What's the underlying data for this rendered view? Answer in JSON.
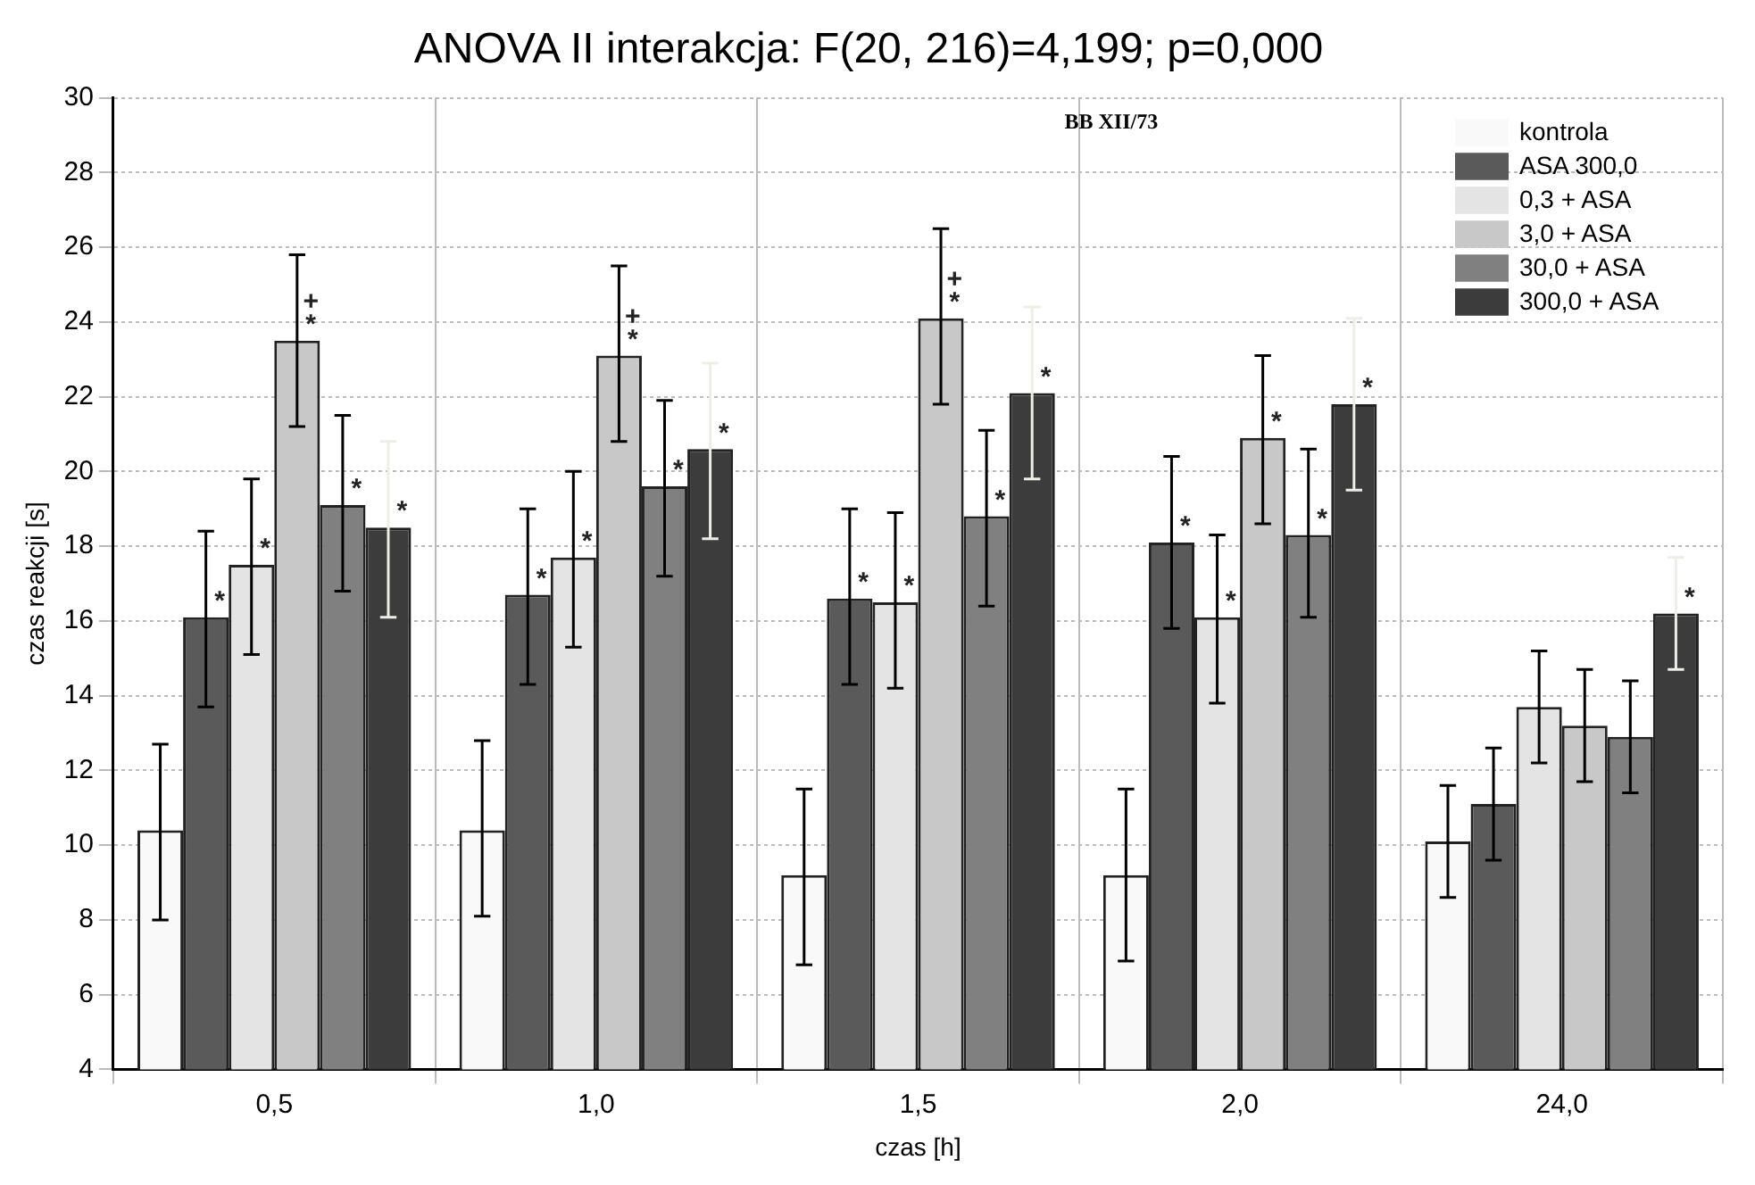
{
  "chart_data": {
    "type": "bar",
    "title": "ANOVA II interakcja: F(20, 216)=4,199; p=0,000",
    "xlabel": "czas [h]",
    "ylabel": "czas reakcji [s]",
    "annotations": [
      "BB XII/73"
    ],
    "categories": [
      "0,5",
      "1,0",
      "1,5",
      "2,0",
      "24,0"
    ],
    "ylim": [
      4,
      30
    ],
    "yticks": [
      4,
      6,
      8,
      10,
      12,
      14,
      16,
      18,
      20,
      22,
      24,
      26,
      28,
      30
    ],
    "grid": true,
    "legend": "top right",
    "series": [
      {
        "name": "kontrola",
        "color": "#f9f9f9",
        "values": [
          10.4,
          10.4,
          9.2,
          9.2,
          10.1
        ],
        "errors": [
          [
            8.0,
            12.7
          ],
          [
            8.1,
            12.8
          ],
          [
            6.8,
            11.5
          ],
          [
            6.9,
            11.5
          ],
          [
            8.6,
            11.6
          ]
        ]
      },
      {
        "name": "ASA 300,0",
        "color": "#5a5a5a",
        "values": [
          16.1,
          16.7,
          16.6,
          18.1,
          11.1
        ],
        "errors": [
          [
            13.7,
            18.4
          ],
          [
            14.3,
            19.0
          ],
          [
            14.3,
            19.0
          ],
          [
            15.8,
            20.4
          ],
          [
            9.6,
            12.6
          ]
        ],
        "value_labels": [
          "*",
          "*",
          "*",
          "*",
          null
        ]
      },
      {
        "name": "0,3 + ASA",
        "color": "#e4e4e4",
        "values": [
          17.5,
          17.7,
          16.5,
          16.1,
          13.7
        ],
        "errors": [
          [
            15.1,
            19.8
          ],
          [
            15.3,
            20.0
          ],
          [
            14.2,
            18.9
          ],
          [
            13.8,
            18.3
          ],
          [
            12.2,
            15.2
          ]
        ],
        "value_labels": [
          "*",
          "*",
          "*",
          "*",
          null
        ]
      },
      {
        "name": "3,0 + ASA",
        "color": "#c8c8c8",
        "values": [
          23.5,
          23.1,
          24.1,
          20.9,
          13.2
        ],
        "errors": [
          [
            21.2,
            25.8
          ],
          [
            20.8,
            25.5
          ],
          [
            21.8,
            26.5
          ],
          [
            18.6,
            23.1
          ],
          [
            11.7,
            14.7
          ]
        ],
        "value_labels": [
          "+\n*",
          "+\n*",
          "+\n*",
          "*",
          null
        ]
      },
      {
        "name": "30,0 + ASA",
        "color": "#808080",
        "values": [
          19.1,
          19.6,
          18.8,
          18.3,
          12.9
        ],
        "errors": [
          [
            16.8,
            21.5
          ],
          [
            17.2,
            21.9
          ],
          [
            16.4,
            21.1
          ],
          [
            16.1,
            20.6
          ],
          [
            11.4,
            14.4
          ]
        ],
        "value_labels": [
          "*",
          "*",
          "*",
          "*",
          null
        ]
      },
      {
        "name": "300,0 + ASA",
        "color": "#3c3c3c",
        "values": [
          18.5,
          20.6,
          22.1,
          21.8,
          16.2
        ],
        "errors": [
          [
            16.1,
            20.8
          ],
          [
            18.2,
            22.9
          ],
          [
            19.8,
            24.4
          ],
          [
            19.5,
            24.1
          ],
          [
            14.7,
            17.7
          ]
        ],
        "value_labels": [
          "*",
          "*",
          "*",
          "*",
          "*"
        ]
      }
    ]
  }
}
